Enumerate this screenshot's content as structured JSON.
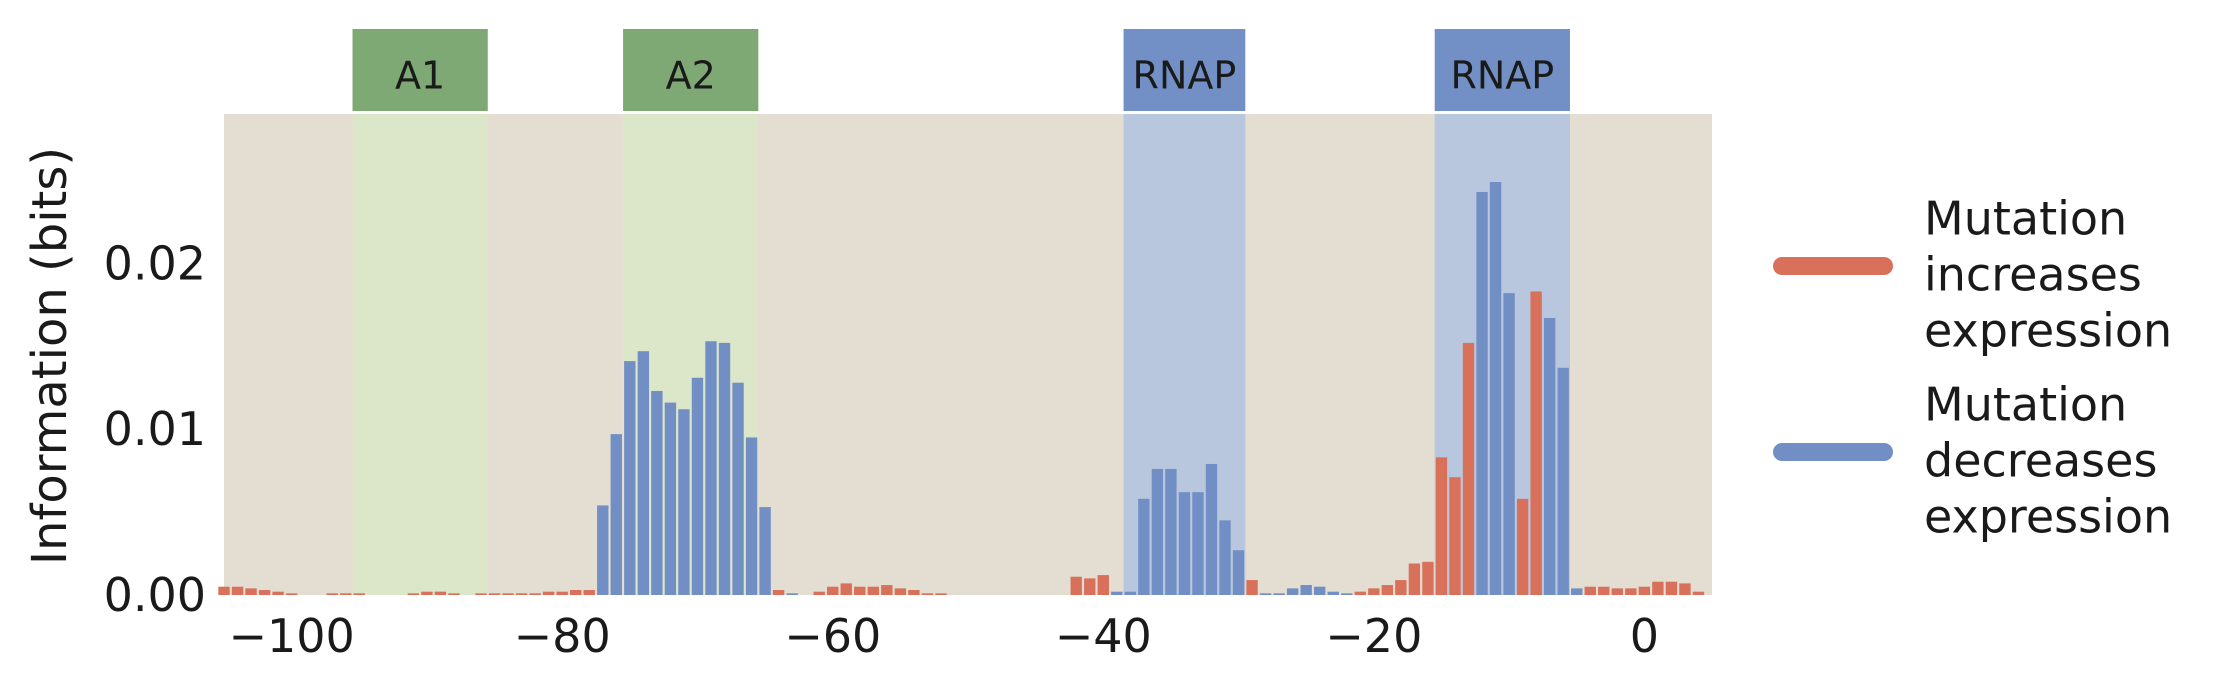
{
  "chart_data": {
    "type": "bar",
    "ylabel": "Information (bits)",
    "xlabel": "",
    "xlim": [
      -105,
      5
    ],
    "ylim": [
      0,
      0.029
    ],
    "xticks": [
      -100,
      -80,
      -60,
      -40,
      -20,
      0
    ],
    "xtick_labels": [
      "−100",
      "−80",
      "−60",
      "−40",
      "−20",
      "0"
    ],
    "yticks": [
      0.0,
      0.01,
      0.02
    ],
    "ytick_labels": [
      "0.00",
      "0.01",
      "0.02"
    ],
    "grid": false,
    "background": "#e3ddd2",
    "legend_placement": "right",
    "colors": {
      "increase": "#d9705a",
      "decrease": "#718fc4",
      "activator_box": "#7ea974",
      "activator_region": "#dce6c9",
      "rnap_box": "#7390c6",
      "rnap_region": "#b9c7de"
    },
    "regions": [
      {
        "label": "A1",
        "start": -95.5,
        "end": -85.5,
        "kind": "activator"
      },
      {
        "label": "A2",
        "start": -75.5,
        "end": -65.5,
        "kind": "activator"
      },
      {
        "label": "RNAP",
        "start": -38.5,
        "end": -29.5,
        "kind": "rnap"
      },
      {
        "label": "RNAP",
        "start": -15.5,
        "end": -5.5,
        "kind": "rnap"
      }
    ],
    "series": [
      {
        "name": "Mutation increases expression",
        "key": "increase"
      },
      {
        "name": "Mutation decreases expression",
        "key": "decrease"
      }
    ],
    "legend": [
      {
        "key": "increase",
        "lines": [
          "Mutation",
          "increases",
          "expression"
        ]
      },
      {
        "key": "decrease",
        "lines": [
          "Mutation",
          "decreases",
          "expression"
        ]
      }
    ],
    "x": [
      -105,
      -104,
      -103,
      -102,
      -101,
      -100,
      -99,
      -98,
      -97,
      -96,
      -95,
      -94,
      -93,
      -92,
      -91,
      -90,
      -89,
      -88,
      -87,
      -86,
      -85,
      -84,
      -83,
      -82,
      -81,
      -80,
      -79,
      -78,
      -77,
      -76,
      -75,
      -74,
      -73,
      -72,
      -71,
      -70,
      -69,
      -68,
      -67,
      -66,
      -65,
      -64,
      -63,
      -62,
      -61,
      -60,
      -59,
      -58,
      -57,
      -56,
      -55,
      -54,
      -53,
      -52,
      -51,
      -50,
      -49,
      -48,
      -47,
      -46,
      -45,
      -44,
      -43,
      -42,
      -41,
      -40,
      -39,
      -38,
      -37,
      -36,
      -35,
      -34,
      -33,
      -32,
      -31,
      -30,
      -29,
      -28,
      -27,
      -26,
      -25,
      -24,
      -23,
      -22,
      -21,
      -20,
      -19,
      -18,
      -17,
      -16,
      -15,
      -14,
      -13,
      -12,
      -11,
      -10,
      -9,
      -8,
      -7,
      -6,
      -5,
      -4,
      -3,
      -2,
      -1,
      0,
      1,
      2,
      3,
      4
    ],
    "values": [
      0.0005,
      0.0005,
      0.0004,
      0.0003,
      0.0002,
      0.0001,
      0.0,
      0.0,
      0.0001,
      0.0001,
      0.0001,
      0.0,
      0.0,
      0.0,
      0.0001,
      0.0002,
      0.0002,
      0.0001,
      0.0,
      0.0001,
      0.0001,
      0.0001,
      0.0001,
      0.0001,
      0.0002,
      0.0002,
      0.0003,
      0.0003,
      0.0054,
      0.0097,
      0.0141,
      0.0147,
      0.0123,
      0.0116,
      0.0112,
      0.0131,
      0.0153,
      0.0152,
      0.0128,
      0.0095,
      0.0053,
      0.0003,
      0.0001,
      0.0,
      0.0002,
      0.0005,
      0.0007,
      0.0005,
      0.0005,
      0.0006,
      0.0004,
      0.0003,
      0.0001,
      0.0001,
      0.0,
      0.0,
      0.0,
      0.0,
      0.0,
      0.0,
      0.0,
      0.0,
      0.0,
      0.0011,
      0.001,
      0.0012,
      0.0002,
      0.0002,
      0.0058,
      0.0076,
      0.0076,
      0.0062,
      0.0062,
      0.0079,
      0.0045,
      0.0027,
      0.0009,
      0.0001,
      0.0001,
      0.0004,
      0.0006,
      0.0005,
      0.0002,
      0.0001,
      0.0002,
      0.0004,
      0.0006,
      0.0009,
      0.0019,
      0.002,
      0.0083,
      0.0071,
      0.0152,
      0.0243,
      0.0249,
      0.0182,
      0.0058,
      0.0183,
      0.0167,
      0.0137,
      0.0004,
      0.0005,
      0.0005,
      0.0004,
      0.0004,
      0.0005,
      0.0008,
      0.0008,
      0.0007,
      0.0002
    ],
    "effect": [
      "increase",
      "increase",
      "increase",
      "increase",
      "increase",
      "increase",
      "increase",
      "increase",
      "increase",
      "increase",
      "increase",
      "increase",
      "increase",
      "increase",
      "increase",
      "increase",
      "increase",
      "increase",
      "increase",
      "increase",
      "increase",
      "increase",
      "increase",
      "increase",
      "increase",
      "increase",
      "increase",
      "increase",
      "decrease",
      "decrease",
      "decrease",
      "decrease",
      "decrease",
      "decrease",
      "decrease",
      "decrease",
      "decrease",
      "decrease",
      "decrease",
      "decrease",
      "decrease",
      "increase",
      "decrease",
      "decrease",
      "increase",
      "increase",
      "increase",
      "increase",
      "increase",
      "increase",
      "increase",
      "increase",
      "increase",
      "increase",
      "increase",
      "increase",
      "increase",
      "increase",
      "increase",
      "increase",
      "increase",
      "increase",
      "increase",
      "increase",
      "increase",
      "increase",
      "decrease",
      "decrease",
      "decrease",
      "decrease",
      "decrease",
      "decrease",
      "decrease",
      "decrease",
      "decrease",
      "decrease",
      "increase",
      "decrease",
      "decrease",
      "decrease",
      "decrease",
      "decrease",
      "decrease",
      "decrease",
      "increase",
      "increase",
      "increase",
      "increase",
      "increase",
      "increase",
      "increase",
      "increase",
      "increase",
      "decrease",
      "decrease",
      "decrease",
      "increase",
      "increase",
      "decrease",
      "decrease",
      "decrease",
      "increase",
      "increase",
      "increase",
      "increase",
      "increase",
      "increase",
      "increase",
      "increase",
      "increase"
    ]
  }
}
